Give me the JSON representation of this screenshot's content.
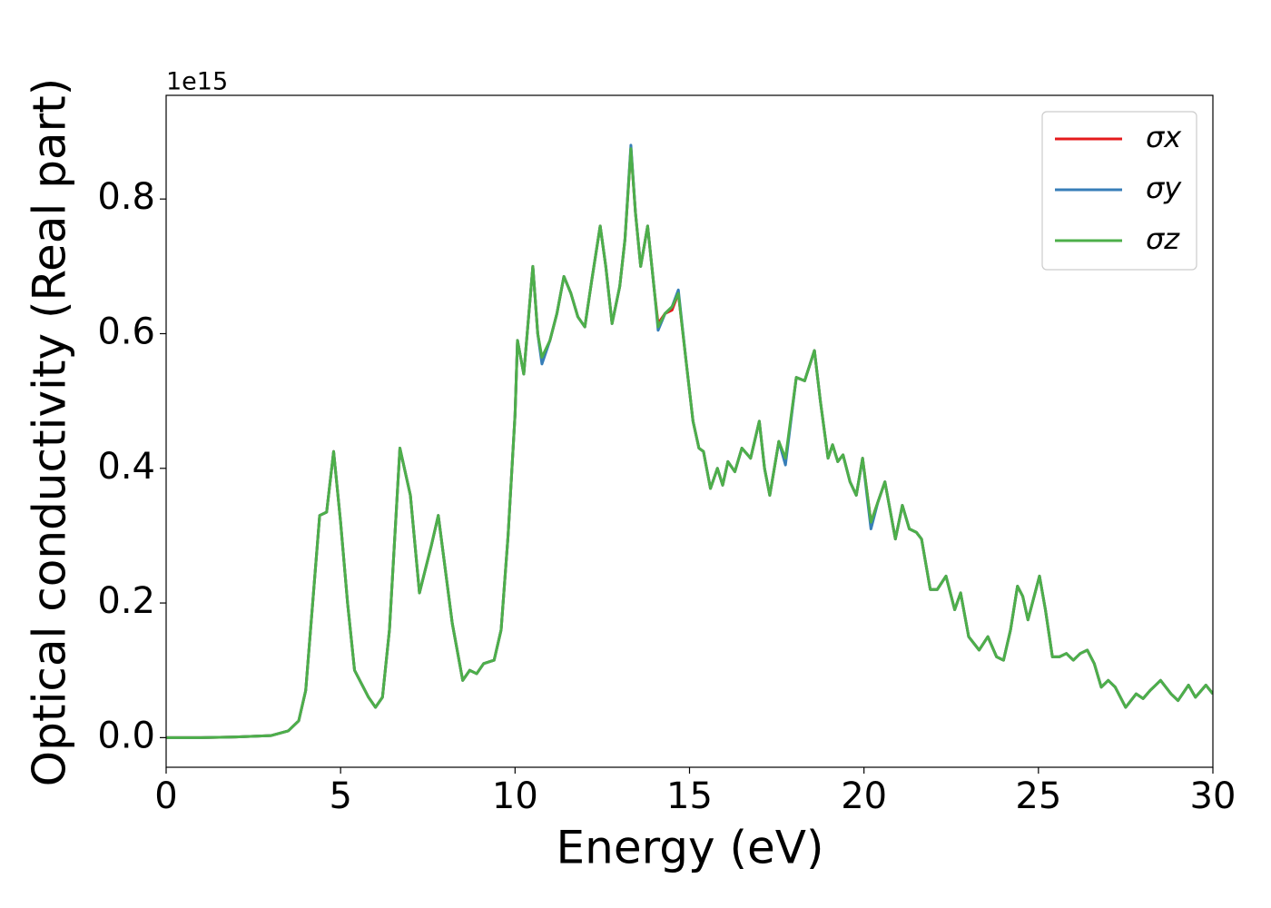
{
  "chart_data": {
    "type": "line",
    "xlabel": "Energy (eV)",
    "ylabel": "Optical conductivity (Real part)",
    "y_offset_label": "1e15",
    "xlim": [
      0,
      30
    ],
    "xticks": [
      0,
      5,
      10,
      15,
      20,
      25,
      30
    ],
    "ylim": [
      -0.044,
      0.954
    ],
    "yticks": [
      {
        "value": 0,
        "label": "0.0"
      },
      0.2,
      0.4,
      0.6,
      0.8
    ],
    "grid": false,
    "legend": "upper right",
    "x": [
      0,
      1,
      2,
      3,
      3.5,
      3.8,
      4.0,
      4.2,
      4.4,
      4.6,
      4.8,
      5.0,
      5.2,
      5.4,
      5.6,
      5.8,
      6.0,
      6.2,
      6.4,
      6.7,
      7.0,
      7.26,
      7.6,
      7.8,
      8.0,
      8.2,
      8.5,
      8.7,
      8.9,
      9.1,
      9.4,
      9.6,
      9.8,
      10.0,
      10.07,
      10.25,
      10.51,
      10.65,
      10.77,
      11.0,
      11.2,
      11.4,
      11.6,
      11.8,
      12.0,
      12.2,
      12.44,
      12.6,
      12.78,
      13.0,
      13.15,
      13.32,
      13.45,
      13.6,
      13.8,
      14.0,
      14.1,
      14.3,
      14.5,
      14.68,
      14.9,
      15.1,
      15.27,
      15.4,
      15.6,
      15.8,
      15.95,
      16.1,
      16.3,
      16.5,
      16.75,
      17.0,
      17.15,
      17.3,
      17.56,
      17.75,
      18.06,
      18.3,
      18.58,
      18.75,
      18.97,
      19.1,
      19.25,
      19.4,
      19.6,
      19.78,
      19.96,
      20.2,
      20.4,
      20.6,
      20.9,
      21.1,
      21.3,
      21.5,
      21.65,
      21.9,
      22.1,
      22.35,
      22.6,
      22.77,
      23.0,
      23.3,
      23.55,
      23.8,
      24.0,
      24.2,
      24.4,
      24.55,
      24.7,
      25.03,
      25.2,
      25.4,
      25.6,
      25.8,
      26.0,
      26.2,
      26.4,
      26.6,
      26.8,
      27.0,
      27.2,
      27.5,
      27.8,
      28.0,
      28.2,
      28.5,
      28.8,
      29.0,
      29.3,
      29.5,
      29.8,
      30.0
    ],
    "series": [
      {
        "name": "σx",
        "color": "#e41a1c",
        "values": [
          0,
          0,
          0.001,
          0.003,
          0.01,
          0.025,
          0.07,
          0.2,
          0.33,
          0.335,
          0.425,
          0.32,
          0.2,
          0.1,
          0.08,
          0.06,
          0.045,
          0.06,
          0.16,
          0.43,
          0.36,
          0.215,
          0.285,
          0.33,
          0.25,
          0.17,
          0.085,
          0.1,
          0.095,
          0.11,
          0.115,
          0.16,
          0.3,
          0.48,
          0.59,
          0.54,
          0.7,
          0.6,
          0.56,
          0.59,
          0.63,
          0.685,
          0.66,
          0.625,
          0.61,
          0.68,
          0.76,
          0.7,
          0.615,
          0.67,
          0.74,
          0.875,
          0.78,
          0.7,
          0.76,
          0.66,
          0.615,
          0.63,
          0.635,
          0.66,
          0.56,
          0.47,
          0.43,
          0.425,
          0.37,
          0.4,
          0.375,
          0.41,
          0.395,
          0.43,
          0.415,
          0.47,
          0.4,
          0.36,
          0.44,
          0.41,
          0.535,
          0.53,
          0.575,
          0.5,
          0.415,
          0.435,
          0.41,
          0.42,
          0.38,
          0.36,
          0.415,
          0.32,
          0.35,
          0.38,
          0.295,
          0.345,
          0.31,
          0.305,
          0.295,
          0.22,
          0.22,
          0.24,
          0.19,
          0.215,
          0.15,
          0.13,
          0.15,
          0.12,
          0.115,
          0.16,
          0.225,
          0.21,
          0.175,
          0.24,
          0.19,
          0.12,
          0.12,
          0.125,
          0.115,
          0.125,
          0.13,
          0.11,
          0.075,
          0.085,
          0.075,
          0.045,
          0.065,
          0.058,
          0.07,
          0.085,
          0.065,
          0.055,
          0.078,
          0.06,
          0.078,
          0.065
        ]
      },
      {
        "name": "σy",
        "color": "#377eb8",
        "values": [
          0,
          0,
          0.001,
          0.003,
          0.01,
          0.025,
          0.07,
          0.2,
          0.33,
          0.335,
          0.425,
          0.32,
          0.2,
          0.1,
          0.08,
          0.06,
          0.045,
          0.06,
          0.16,
          0.43,
          0.36,
          0.215,
          0.285,
          0.33,
          0.25,
          0.17,
          0.085,
          0.1,
          0.095,
          0.11,
          0.115,
          0.16,
          0.3,
          0.48,
          0.59,
          0.54,
          0.7,
          0.6,
          0.555,
          0.59,
          0.63,
          0.685,
          0.66,
          0.625,
          0.61,
          0.68,
          0.76,
          0.7,
          0.615,
          0.67,
          0.74,
          0.88,
          0.78,
          0.7,
          0.76,
          0.66,
          0.605,
          0.63,
          0.64,
          0.665,
          0.56,
          0.47,
          0.43,
          0.425,
          0.37,
          0.4,
          0.375,
          0.41,
          0.395,
          0.43,
          0.415,
          0.47,
          0.4,
          0.36,
          0.44,
          0.405,
          0.535,
          0.53,
          0.575,
          0.5,
          0.415,
          0.435,
          0.41,
          0.42,
          0.38,
          0.36,
          0.415,
          0.31,
          0.35,
          0.38,
          0.295,
          0.345,
          0.31,
          0.305,
          0.295,
          0.22,
          0.22,
          0.24,
          0.19,
          0.215,
          0.15,
          0.13,
          0.15,
          0.12,
          0.115,
          0.16,
          0.225,
          0.21,
          0.175,
          0.24,
          0.19,
          0.12,
          0.12,
          0.125,
          0.115,
          0.125,
          0.13,
          0.11,
          0.075,
          0.085,
          0.075,
          0.045,
          0.065,
          0.058,
          0.07,
          0.085,
          0.065,
          0.055,
          0.078,
          0.06,
          0.078,
          0.065
        ]
      },
      {
        "name": "σz",
        "color": "#4daf4a",
        "values": [
          0,
          0,
          0.001,
          0.003,
          0.01,
          0.025,
          0.07,
          0.2,
          0.33,
          0.335,
          0.425,
          0.32,
          0.2,
          0.1,
          0.08,
          0.06,
          0.045,
          0.06,
          0.16,
          0.43,
          0.36,
          0.215,
          0.285,
          0.33,
          0.25,
          0.17,
          0.085,
          0.1,
          0.095,
          0.11,
          0.115,
          0.16,
          0.3,
          0.48,
          0.59,
          0.54,
          0.7,
          0.6,
          0.565,
          0.59,
          0.63,
          0.685,
          0.66,
          0.625,
          0.61,
          0.68,
          0.76,
          0.7,
          0.615,
          0.67,
          0.74,
          0.875,
          0.78,
          0.7,
          0.76,
          0.66,
          0.61,
          0.63,
          0.64,
          0.66,
          0.56,
          0.47,
          0.43,
          0.425,
          0.37,
          0.4,
          0.375,
          0.41,
          0.395,
          0.43,
          0.415,
          0.47,
          0.4,
          0.36,
          0.44,
          0.415,
          0.535,
          0.53,
          0.575,
          0.5,
          0.415,
          0.435,
          0.41,
          0.42,
          0.38,
          0.36,
          0.415,
          0.32,
          0.35,
          0.38,
          0.295,
          0.345,
          0.31,
          0.305,
          0.295,
          0.22,
          0.22,
          0.24,
          0.19,
          0.215,
          0.15,
          0.13,
          0.15,
          0.12,
          0.115,
          0.16,
          0.225,
          0.21,
          0.175,
          0.24,
          0.19,
          0.12,
          0.12,
          0.125,
          0.115,
          0.125,
          0.13,
          0.11,
          0.075,
          0.085,
          0.075,
          0.045,
          0.065,
          0.058,
          0.07,
          0.085,
          0.065,
          0.055,
          0.078,
          0.06,
          0.078,
          0.065
        ]
      }
    ]
  }
}
